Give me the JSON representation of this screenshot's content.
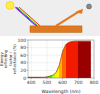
{
  "chart_data": {
    "type": "area",
    "x": [
      380,
      400,
      420,
      440,
      460,
      480,
      500,
      520,
      540,
      560,
      580,
      600,
      620,
      640,
      660,
      680,
      700,
      720,
      740,
      760,
      780
    ],
    "values": [
      2,
      2,
      2,
      2,
      2,
      2,
      3,
      5,
      8,
      15,
      35,
      70,
      88,
      94,
      96,
      97,
      97,
      97,
      97,
      97,
      97
    ],
    "color": "#993300",
    "xlabel": "Wavelength (nm)",
    "ylabel": "Energy\nreflecting\nfactor /\nreflectance (%)",
    "xlim": [
      380,
      800
    ],
    "xticks": [
      400,
      500,
      600,
      700,
      800
    ],
    "ylim": [
      0,
      100
    ],
    "yticks": [
      0,
      20,
      40,
      60,
      80,
      100
    ],
    "grid": true
  }
}
